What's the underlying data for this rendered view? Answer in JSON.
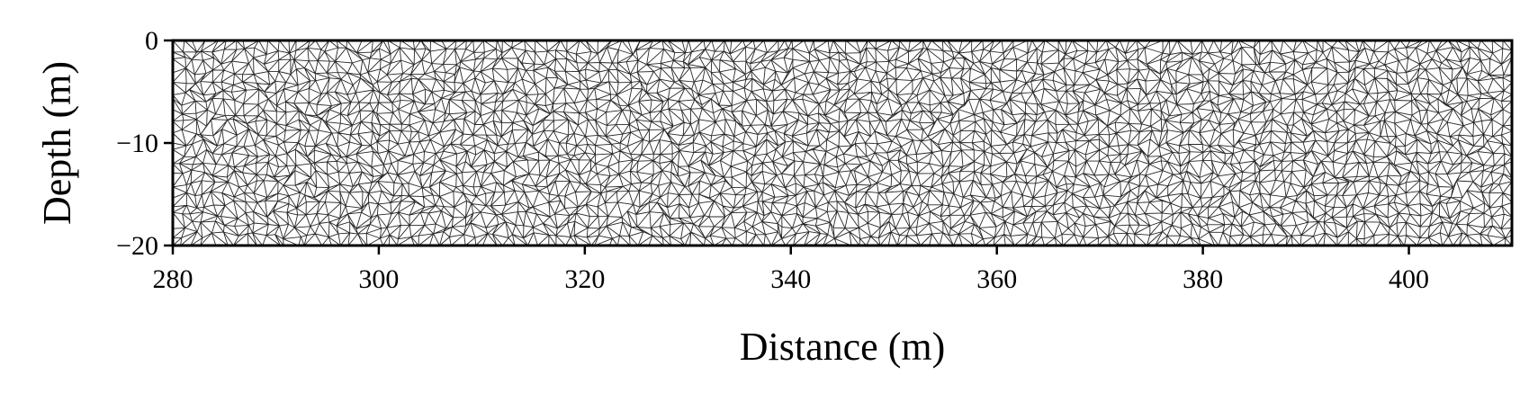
{
  "chart_data": {
    "type": "mesh",
    "title": "",
    "xlabel": "Distance (m)",
    "ylabel": "Depth (m)",
    "xlim": [
      280,
      410
    ],
    "ylim": [
      -20,
      0
    ],
    "x_ticks": [
      280,
      300,
      320,
      340,
      360,
      380,
      400
    ],
    "y_ticks": [
      0,
      -10,
      -20
    ],
    "x_tick_labels": [
      "280",
      "300",
      "320",
      "340",
      "360",
      "380",
      "400"
    ],
    "y_tick_labels": [
      "0",
      "−10",
      "−20"
    ],
    "grid": false,
    "legend": "none",
    "mesh_description": "unstructured triangular mesh",
    "colors": {
      "mesh_edges": "#000000",
      "background": "#ffffff",
      "frame": "#000000"
    }
  }
}
